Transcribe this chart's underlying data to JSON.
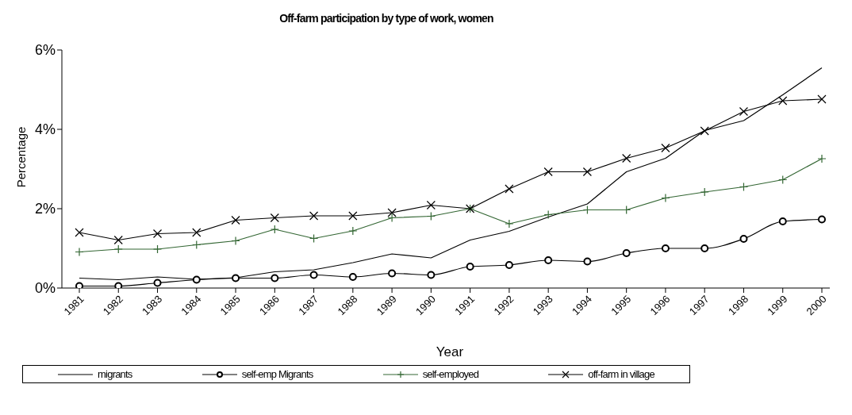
{
  "chart_data": {
    "type": "line",
    "title": "Off-farm participation by type of work, women",
    "xlabel": "Year",
    "ylabel": "Percentage",
    "categories": [
      "1981",
      "1982",
      "1983",
      "1984",
      "1985",
      "1986",
      "1987",
      "1988",
      "1989",
      "1990",
      "1991",
      "1992",
      "1993",
      "1994",
      "1995",
      "1996",
      "1997",
      "1998",
      "1999",
      "2000"
    ],
    "series": [
      {
        "name": "migrants",
        "color": "#000000",
        "marker": "none",
        "values": [
          0.25,
          0.21,
          0.28,
          0.22,
          0.26,
          0.41,
          0.46,
          0.64,
          0.86,
          0.76,
          1.21,
          1.43,
          1.79,
          2.12,
          2.93,
          3.27,
          3.97,
          4.22,
          4.87,
          5.55
        ]
      },
      {
        "name": "self-emp Migrants",
        "color": "#000000",
        "marker": "circle",
        "values": [
          0.05,
          0.05,
          0.13,
          0.21,
          0.25,
          0.25,
          0.33,
          0.28,
          0.37,
          0.33,
          0.54,
          0.58,
          0.7,
          0.67,
          0.88,
          1.0,
          1.0,
          1.24,
          1.68,
          1.73
        ]
      },
      {
        "name": "self-employed",
        "color": "#336633",
        "marker": "cross",
        "values": [
          0.91,
          0.98,
          0.98,
          1.09,
          1.19,
          1.48,
          1.25,
          1.44,
          1.77,
          1.81,
          2.0,
          1.62,
          1.85,
          1.97,
          1.97,
          2.27,
          2.42,
          2.55,
          2.73,
          3.26
        ]
      },
      {
        "name": "off-farm in village",
        "color": "#000000",
        "marker": "x",
        "values": [
          1.4,
          1.21,
          1.37,
          1.4,
          1.71,
          1.77,
          1.82,
          1.82,
          1.9,
          2.09,
          2.0,
          2.5,
          2.93,
          2.93,
          3.27,
          3.53,
          3.96,
          4.45,
          4.72,
          4.76
        ]
      }
    ],
    "ylim": [
      0,
      6
    ],
    "yticks": [
      {
        "value": 0,
        "label": "0%"
      },
      {
        "value": 2,
        "label": "2%"
      },
      {
        "value": 4,
        "label": "4%"
      },
      {
        "value": 6,
        "label": "6%"
      }
    ],
    "grid": false,
    "legend": "bottom"
  }
}
